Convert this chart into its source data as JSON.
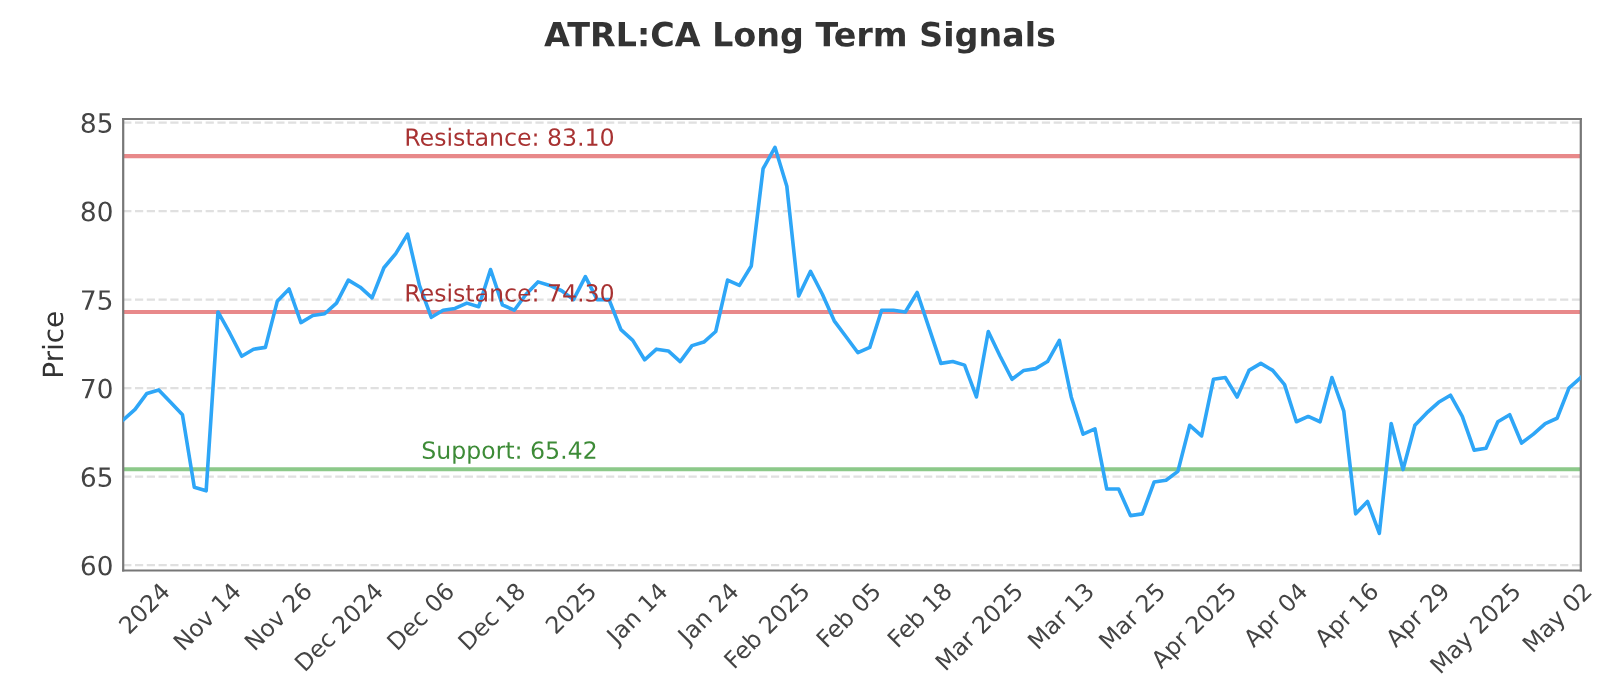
{
  "chart_data": {
    "type": "line",
    "title": "ATRL:CA Long Term Signals",
    "ylabel": "Price",
    "categories": [
      null,
      null,
      null,
      "2024",
      null,
      null,
      null,
      null,
      null,
      "Nov 14",
      null,
      null,
      null,
      null,
      null,
      "Nov 26",
      null,
      null,
      null,
      null,
      null,
      "Dec 2024",
      null,
      null,
      null,
      null,
      null,
      "Dec 06",
      null,
      null,
      null,
      null,
      null,
      "Dec 18",
      null,
      null,
      null,
      null,
      null,
      "2025",
      null,
      null,
      null,
      null,
      null,
      "Jan 14",
      null,
      null,
      null,
      null,
      null,
      "Jan 24",
      null,
      null,
      null,
      null,
      null,
      "Feb 2025",
      null,
      null,
      null,
      null,
      null,
      "Feb 05",
      null,
      null,
      null,
      null,
      null,
      "Feb 18",
      null,
      null,
      null,
      null,
      null,
      "Mar 2025",
      null,
      null,
      null,
      null,
      null,
      "Mar 13",
      null,
      null,
      null,
      null,
      null,
      "Mar 25",
      null,
      null,
      null,
      null,
      null,
      "Apr 2025",
      null,
      null,
      null,
      null,
      null,
      "Apr 04",
      null,
      null,
      null,
      null,
      null,
      "Apr 16",
      null,
      null,
      null,
      null,
      null,
      "Apr 29",
      null,
      null,
      null,
      null,
      null,
      "May 2025",
      null,
      null,
      null,
      null,
      null,
      "May 02"
    ],
    "series": [
      {
        "color": "#2ea6f7",
        "values": [
          68.2,
          68.8,
          69.7,
          69.9,
          69.2,
          68.5,
          64.4,
          64.2,
          74.3,
          73.1,
          71.8,
          72.2,
          72.3,
          74.9,
          75.6,
          73.7,
          74.1,
          74.2,
          74.8,
          76.1,
          75.7,
          75.1,
          76.8,
          77.6,
          78.7,
          75.8,
          74.0,
          74.4,
          74.5,
          74.8,
          74.6,
          76.7,
          74.7,
          74.4,
          75.3,
          76.0,
          75.8,
          75.5,
          75.0,
          76.3,
          75.0,
          75.0,
          73.3,
          72.7,
          71.6,
          72.2,
          72.1,
          71.5,
          72.4,
          72.6,
          73.2,
          76.1,
          75.8,
          76.9,
          82.4,
          83.6,
          81.4,
          75.2,
          76.6,
          75.3,
          73.8,
          72.9,
          72.0,
          72.3,
          74.4,
          74.4,
          74.3,
          75.4,
          73.4,
          71.4,
          71.5,
          71.3,
          69.5,
          73.2,
          71.8,
          70.5,
          71.0,
          71.1,
          71.5,
          72.7,
          69.5,
          67.4,
          67.7,
          64.3,
          64.3,
          62.8,
          62.9,
          64.7,
          64.8,
          65.3,
          67.9,
          67.3,
          70.5,
          70.6,
          69.5,
          71.0,
          71.4,
          71.0,
          70.2,
          68.1,
          68.4,
          68.1,
          70.6,
          68.7,
          62.9,
          63.6,
          61.8,
          68.0,
          65.4,
          67.9,
          68.6,
          69.2,
          69.6,
          68.4,
          66.5,
          66.6,
          68.1,
          68.5,
          66.9,
          67.4,
          68.0,
          68.3,
          70.0,
          70.6
        ]
      }
    ],
    "ylim": [
      59.7,
      85.2
    ],
    "yticks": [
      60,
      65,
      70,
      75,
      80,
      85
    ],
    "grid": "y",
    "marker": "none",
    "line_style": "solid",
    "ref_lines": [
      {
        "axis": "y",
        "value": 83.1,
        "label": "Resistance: 83.10",
        "color": "#e8898a"
      },
      {
        "axis": "y",
        "value": 74.3,
        "label": "Resistance: 74.30",
        "color": "#e8898a"
      },
      {
        "axis": "y",
        "value": 65.42,
        "label": "Support: 65.42",
        "color": "#8cc98a"
      }
    ]
  }
}
